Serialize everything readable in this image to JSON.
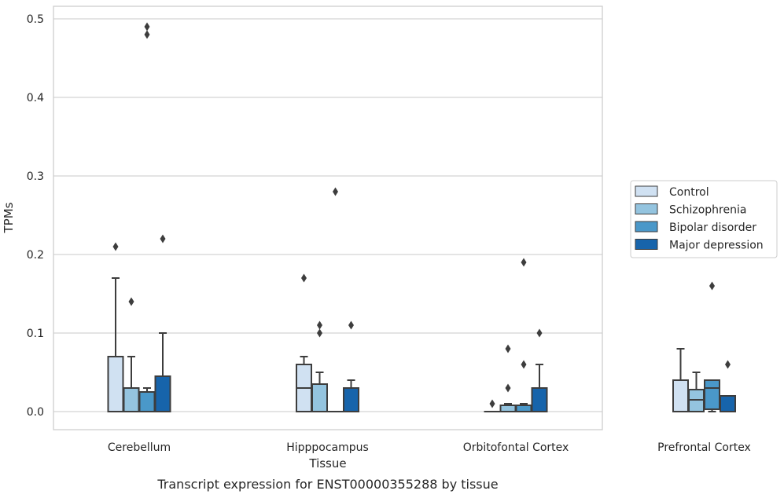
{
  "caption": "Transcript expression for ENST00000355288 by tissue",
  "chart_data": {
    "type": "boxplot",
    "xlabel": "Tissue",
    "ylabel": "TPMs",
    "ylim": [
      -0.024,
      0.516
    ],
    "yticks": [
      0.0,
      0.1,
      0.2,
      0.3,
      0.4,
      0.5
    ],
    "ytick_labels": [
      "0.0",
      "0.1",
      "0.2",
      "0.3",
      "0.4",
      "0.5"
    ],
    "grid": "horizontal",
    "legend_position": "right-center",
    "categories": [
      "Cerebellum",
      "Hipppocampus",
      "Orbitofontal Cortex",
      "Prefrontal Cortex"
    ],
    "series": [
      {
        "name": "Control",
        "color": "#d0e1f2",
        "boxes": [
          {
            "whislo": 0.0,
            "q1": 0.0,
            "med": 0.0,
            "q3": 0.07,
            "whishi": 0.17,
            "fliers": [
              0.21
            ]
          },
          {
            "whislo": 0.0,
            "q1": 0.0,
            "med": 0.03,
            "q3": 0.06,
            "whishi": 0.07,
            "fliers": [
              0.17
            ]
          },
          {
            "whislo": 0.0,
            "q1": 0.0,
            "med": 0.0,
            "q3": 0.0,
            "whishi": 0.0,
            "fliers": [
              0.01
            ]
          },
          {
            "whislo": 0.0,
            "q1": 0.0,
            "med": 0.0,
            "q3": 0.04,
            "whishi": 0.08,
            "fliers": []
          }
        ]
      },
      {
        "name": "Schizophrenia",
        "color": "#94c4df",
        "boxes": [
          {
            "whislo": 0.0,
            "q1": 0.0,
            "med": 0.0,
            "q3": 0.03,
            "whishi": 0.07,
            "fliers": [
              0.14
            ]
          },
          {
            "whislo": 0.0,
            "q1": 0.0,
            "med": 0.0,
            "q3": 0.035,
            "whishi": 0.05,
            "fliers": [
              0.11,
              0.1
            ]
          },
          {
            "whislo": 0.0,
            "q1": 0.0,
            "med": 0.0,
            "q3": 0.008,
            "whishi": 0.01,
            "fliers": [
              0.08,
              0.03
            ]
          },
          {
            "whislo": 0.0,
            "q1": 0.0,
            "med": 0.015,
            "q3": 0.028,
            "whishi": 0.05,
            "fliers": []
          }
        ]
      },
      {
        "name": "Bipolar disorder",
        "color": "#4a98c9",
        "boxes": [
          {
            "whislo": 0.0,
            "q1": 0.0,
            "med": 0.0,
            "q3": 0.025,
            "whishi": 0.03,
            "fliers": [
              0.49,
              0.48
            ]
          },
          {
            "whislo": 0.0,
            "q1": 0.0,
            "med": 0.0,
            "q3": 0.0,
            "whishi": 0.0,
            "fliers": [
              0.28
            ]
          },
          {
            "whislo": 0.0,
            "q1": 0.0,
            "med": 0.0,
            "q3": 0.008,
            "whishi": 0.01,
            "fliers": [
              0.19,
              0.06
            ]
          },
          {
            "whislo": 0.0,
            "q1": 0.003,
            "med": 0.03,
            "q3": 0.04,
            "whishi": 0.04,
            "fliers": [
              0.16
            ]
          }
        ]
      },
      {
        "name": "Major depression",
        "color": "#1764ab",
        "boxes": [
          {
            "whislo": 0.0,
            "q1": 0.0,
            "med": 0.0,
            "q3": 0.045,
            "whishi": 0.1,
            "fliers": [
              0.22
            ]
          },
          {
            "whislo": 0.0,
            "q1": 0.0,
            "med": 0.0,
            "q3": 0.03,
            "whishi": 0.04,
            "fliers": [
              0.11
            ]
          },
          {
            "whislo": 0.0,
            "q1": 0.0,
            "med": 0.0,
            "q3": 0.03,
            "whishi": 0.06,
            "fliers": [
              0.1
            ]
          },
          {
            "whislo": 0.0,
            "q1": 0.0,
            "med": 0.0,
            "q3": 0.02,
            "whishi": 0.02,
            "fliers": [
              0.06
            ]
          }
        ]
      }
    ]
  }
}
